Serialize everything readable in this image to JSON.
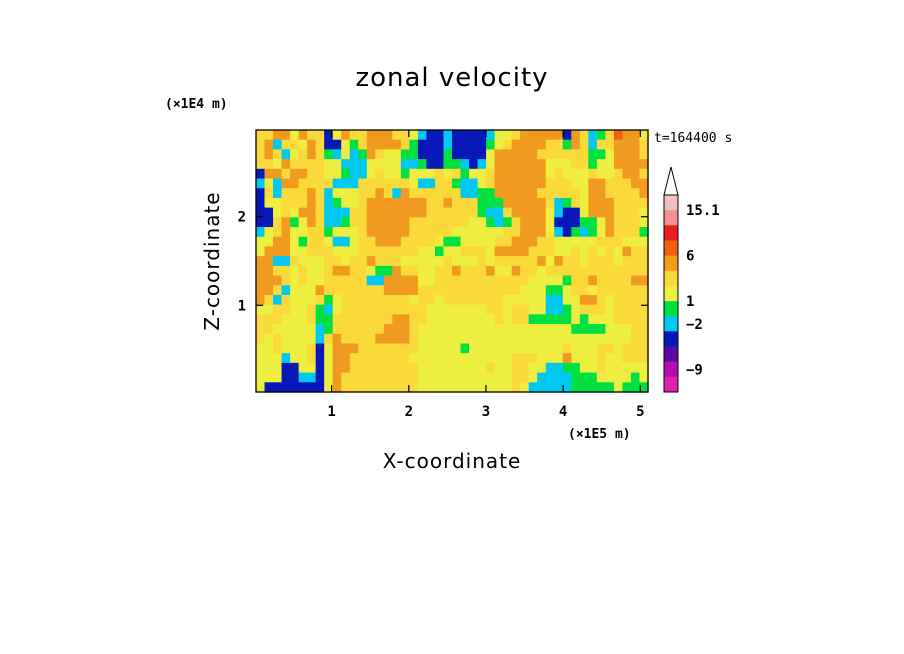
{
  "chart_data": {
    "type": "heatmap",
    "title": "zonal velocity",
    "xlabel": "X-coordinate",
    "ylabel": "Z-coordinate",
    "x_unit": "(×1E5 m)",
    "y_unit": "(×1E4 m)",
    "time_label": "t=164400 s",
    "xlim": [
      0.02,
      5.1
    ],
    "ylim": [
      0.02,
      2.98
    ],
    "x_ticks": [
      {
        "value": 1,
        "label": "1"
      },
      {
        "value": 2,
        "label": "2"
      },
      {
        "value": 3,
        "label": "3"
      },
      {
        "value": 4,
        "label": "4"
      },
      {
        "value": 5,
        "label": "5"
      }
    ],
    "y_ticks": [
      {
        "value": 1,
        "label": "1"
      },
      {
        "value": 2,
        "label": "2"
      }
    ],
    "colorbar": {
      "extend_max": true,
      "levels": [
        {
          "color": "#f2c0c0"
        },
        {
          "color": "#f59090"
        },
        {
          "color": "#e82020"
        },
        {
          "color": "#f06010"
        },
        {
          "color": "#f09a20"
        },
        {
          "color": "#fada3a"
        },
        {
          "color": "#eeee40"
        },
        {
          "color": "#00e040"
        },
        {
          "color": "#00c8f0"
        },
        {
          "color": "#0818b8"
        },
        {
          "color": "#5a0aa0"
        },
        {
          "color": "#b010b0"
        },
        {
          "color": "#e020b0"
        }
      ],
      "labels": [
        {
          "text": "15.1",
          "boundary": 1
        },
        {
          "text": "6",
          "boundary": 4
        },
        {
          "text": "1",
          "boundary": 7
        },
        {
          "text": "−2",
          "boundary": 8.5
        },
        {
          "text": "−9",
          "boundary": 11.5
        }
      ]
    },
    "field": [
      [
        5,
        5,
        4,
        4,
        6,
        4,
        5,
        5,
        9,
        6,
        4,
        5,
        5,
        4,
        4,
        4,
        5,
        5,
        6,
        8,
        9,
        9,
        8,
        9,
        9,
        9,
        9,
        8,
        6,
        6,
        5,
        4,
        4,
        4,
        4,
        4,
        9,
        4,
        5,
        8,
        7,
        5,
        3,
        4,
        4,
        6
      ],
      [
        5,
        4,
        8,
        5,
        5,
        6,
        4,
        5,
        9,
        9,
        6,
        7,
        5,
        4,
        4,
        4,
        4,
        5,
        7,
        9,
        9,
        9,
        8,
        9,
        9,
        9,
        9,
        7,
        6,
        5,
        4,
        4,
        4,
        4,
        5,
        5,
        7,
        4,
        5,
        8,
        5,
        5,
        4,
        4,
        4,
        5
      ],
      [
        5,
        4,
        5,
        8,
        6,
        5,
        4,
        5,
        7,
        8,
        6,
        8,
        7,
        4,
        5,
        6,
        6,
        7,
        7,
        9,
        9,
        9,
        7,
        9,
        9,
        9,
        9,
        6,
        4,
        4,
        4,
        4,
        4,
        5,
        5,
        5,
        5,
        5,
        5,
        7,
        7,
        6,
        4,
        4,
        4,
        5
      ],
      [
        5,
        5,
        6,
        4,
        5,
        5,
        5,
        5,
        6,
        6,
        8,
        8,
        8,
        6,
        6,
        6,
        6,
        8,
        8,
        7,
        9,
        9,
        7,
        7,
        8,
        9,
        8,
        6,
        4,
        4,
        4,
        4,
        4,
        4,
        6,
        6,
        6,
        5,
        5,
        7,
        6,
        6,
        4,
        4,
        4,
        4
      ],
      [
        9,
        4,
        4,
        5,
        4,
        4,
        5,
        5,
        6,
        6,
        7,
        8,
        8,
        6,
        5,
        6,
        6,
        7,
        6,
        6,
        6,
        5,
        6,
        5,
        7,
        6,
        6,
        5,
        4,
        4,
        4,
        4,
        4,
        4,
        6,
        5,
        6,
        6,
        6,
        5,
        6,
        6,
        5,
        4,
        4,
        5
      ],
      [
        8,
        6,
        8,
        4,
        4,
        5,
        5,
        5,
        5,
        8,
        8,
        8,
        5,
        5,
        5,
        5,
        5,
        5,
        6,
        8,
        8,
        5,
        5,
        7,
        8,
        8,
        6,
        5,
        4,
        4,
        4,
        4,
        4,
        4,
        5,
        5,
        5,
        6,
        6,
        4,
        4,
        5,
        5,
        5,
        4,
        4
      ],
      [
        9,
        5,
        8,
        5,
        5,
        5,
        4,
        5,
        8,
        6,
        6,
        6,
        5,
        5,
        4,
        5,
        8,
        4,
        5,
        5,
        5,
        5,
        5,
        5,
        8,
        8,
        7,
        7,
        4,
        4,
        4,
        4,
        4,
        5,
        5,
        5,
        5,
        5,
        6,
        4,
        4,
        5,
        5,
        5,
        5,
        4
      ],
      [
        9,
        6,
        6,
        5,
        5,
        5,
        4,
        5,
        8,
        7,
        6,
        6,
        5,
        4,
        4,
        4,
        4,
        4,
        4,
        4,
        5,
        5,
        4,
        5,
        5,
        5,
        7,
        7,
        7,
        4,
        4,
        4,
        4,
        4,
        5,
        8,
        7,
        5,
        6,
        4,
        4,
        4,
        5,
        5,
        5,
        5
      ],
      [
        9,
        9,
        6,
        5,
        6,
        4,
        4,
        5,
        8,
        8,
        8,
        5,
        5,
        4,
        4,
        4,
        4,
        4,
        4,
        4,
        5,
        5,
        5,
        5,
        5,
        5,
        7,
        8,
        8,
        5,
        4,
        4,
        4,
        4,
        6,
        8,
        9,
        9,
        6,
        4,
        4,
        4,
        5,
        5,
        5,
        6
      ],
      [
        9,
        9,
        5,
        4,
        7,
        6,
        4,
        5,
        8,
        8,
        7,
        5,
        5,
        4,
        4,
        4,
        4,
        4,
        5,
        5,
        5,
        5,
        5,
        5,
        5,
        6,
        6,
        7,
        8,
        7,
        5,
        4,
        4,
        4,
        6,
        9,
        9,
        9,
        7,
        7,
        6,
        4,
        5,
        5,
        5,
        6
      ],
      [
        8,
        6,
        5,
        4,
        6,
        6,
        5,
        5,
        7,
        6,
        6,
        6,
        5,
        4,
        4,
        4,
        4,
        4,
        5,
        5,
        5,
        5,
        5,
        6,
        6,
        6,
        6,
        6,
        6,
        5,
        5,
        4,
        4,
        4,
        6,
        8,
        9,
        7,
        8,
        7,
        6,
        4,
        5,
        5,
        5,
        7
      ],
      [
        6,
        6,
        4,
        4,
        6,
        7,
        5,
        5,
        6,
        8,
        8,
        6,
        5,
        5,
        4,
        4,
        4,
        5,
        5,
        5,
        5,
        6,
        7,
        7,
        6,
        6,
        6,
        6,
        5,
        5,
        4,
        4,
        4,
        5,
        5,
        6,
        6,
        6,
        6,
        6,
        5,
        5,
        5,
        6,
        6,
        6
      ],
      [
        6,
        4,
        4,
        4,
        6,
        6,
        5,
        5,
        5,
        6,
        6,
        6,
        5,
        5,
        5,
        5,
        5,
        5,
        5,
        6,
        6,
        7,
        6,
        6,
        5,
        5,
        5,
        6,
        4,
        4,
        4,
        4,
        5,
        5,
        5,
        6,
        6,
        5,
        6,
        5,
        6,
        5,
        6,
        4,
        5,
        5
      ],
      [
        4,
        4,
        8,
        8,
        5,
        6,
        6,
        6,
        5,
        5,
        6,
        5,
        5,
        4,
        5,
        5,
        5,
        6,
        6,
        6,
        6,
        6,
        5,
        6,
        6,
        6,
        5,
        6,
        5,
        5,
        5,
        5,
        5,
        4,
        6,
        4,
        5,
        5,
        6,
        5,
        5,
        5,
        6,
        5,
        5,
        5
      ],
      [
        4,
        4,
        5,
        5,
        6,
        5,
        6,
        6,
        5,
        4,
        4,
        5,
        5,
        6,
        7,
        7,
        4,
        5,
        5,
        6,
        6,
        5,
        5,
        4,
        5,
        5,
        5,
        4,
        6,
        6,
        4,
        5,
        5,
        6,
        5,
        5,
        5,
        5,
        5,
        5,
        5,
        5,
        5,
        5,
        5,
        5
      ],
      [
        4,
        4,
        4,
        5,
        6,
        5,
        6,
        6,
        5,
        5,
        5,
        5,
        5,
        8,
        8,
        4,
        4,
        4,
        4,
        6,
        6,
        5,
        5,
        5,
        5,
        5,
        5,
        5,
        5,
        5,
        5,
        5,
        6,
        6,
        6,
        6,
        7,
        5,
        5,
        4,
        5,
        5,
        5,
        5,
        4,
        4
      ],
      [
        4,
        4,
        5,
        8,
        6,
        6,
        6,
        4,
        5,
        5,
        5,
        5,
        5,
        5,
        5,
        4,
        4,
        4,
        4,
        5,
        5,
        5,
        5,
        5,
        5,
        5,
        5,
        5,
        5,
        5,
        5,
        6,
        6,
        6,
        7,
        7,
        6,
        5,
        5,
        6,
        5,
        5,
        5,
        5,
        5,
        5
      ],
      [
        4,
        5,
        8,
        5,
        6,
        6,
        6,
        5,
        7,
        6,
        5,
        5,
        5,
        5,
        5,
        5,
        5,
        5,
        6,
        5,
        5,
        6,
        5,
        5,
        5,
        5,
        5,
        5,
        5,
        6,
        6,
        6,
        6,
        6,
        8,
        8,
        6,
        6,
        4,
        4,
        5,
        6,
        5,
        5,
        5,
        5
      ],
      [
        6,
        6,
        5,
        5,
        6,
        6,
        5,
        7,
        8,
        6,
        5,
        5,
        5,
        5,
        5,
        5,
        5,
        5,
        5,
        5,
        6,
        6,
        6,
        6,
        6,
        6,
        6,
        5,
        5,
        6,
        5,
        5,
        6,
        6,
        8,
        8,
        7,
        6,
        5,
        5,
        5,
        6,
        5,
        5,
        5,
        5
      ],
      [
        5,
        5,
        5,
        6,
        6,
        6,
        5,
        7,
        7,
        5,
        5,
        5,
        5,
        5,
        5,
        5,
        4,
        4,
        5,
        5,
        6,
        6,
        6,
        6,
        6,
        6,
        6,
        6,
        5,
        6,
        5,
        5,
        7,
        7,
        7,
        7,
        7,
        6,
        7,
        6,
        6,
        6,
        5,
        5,
        5,
        5
      ],
      [
        5,
        5,
        6,
        6,
        6,
        6,
        6,
        8,
        7,
        5,
        5,
        5,
        5,
        5,
        5,
        4,
        4,
        4,
        5,
        6,
        6,
        6,
        6,
        6,
        6,
        6,
        6,
        6,
        6,
        6,
        6,
        6,
        6,
        6,
        6,
        6,
        6,
        7,
        7,
        7,
        7,
        6,
        6,
        6,
        5,
        5
      ],
      [
        5,
        6,
        5,
        6,
        6,
        6,
        6,
        8,
        5,
        4,
        5,
        5,
        5,
        5,
        4,
        4,
        4,
        4,
        5,
        6,
        6,
        6,
        6,
        6,
        6,
        6,
        6,
        6,
        6,
        6,
        6,
        6,
        6,
        6,
        6,
        6,
        6,
        6,
        6,
        6,
        6,
        6,
        6,
        6,
        5,
        5
      ],
      [
        6,
        6,
        5,
        6,
        6,
        6,
        5,
        9,
        6,
        4,
        4,
        4,
        5,
        5,
        5,
        5,
        5,
        5,
        5,
        6,
        6,
        6,
        6,
        6,
        7,
        6,
        6,
        6,
        6,
        6,
        6,
        6,
        6,
        6,
        6,
        6,
        5,
        6,
        6,
        6,
        5,
        5,
        6,
        5,
        5,
        5
      ],
      [
        6,
        6,
        6,
        8,
        6,
        6,
        5,
        9,
        6,
        4,
        4,
        5,
        5,
        5,
        5,
        5,
        5,
        5,
        6,
        6,
        6,
        6,
        6,
        6,
        6,
        6,
        6,
        6,
        6,
        6,
        5,
        5,
        5,
        6,
        6,
        6,
        4,
        6,
        6,
        6,
        5,
        6,
        6,
        5,
        5,
        5
      ],
      [
        6,
        6,
        6,
        9,
        9,
        6,
        6,
        9,
        6,
        4,
        4,
        5,
        5,
        5,
        5,
        5,
        5,
        5,
        5,
        6,
        6,
        6,
        6,
        6,
        6,
        6,
        6,
        5,
        6,
        6,
        5,
        5,
        6,
        6,
        8,
        8,
        7,
        7,
        6,
        6,
        5,
        6,
        6,
        6,
        6,
        6
      ],
      [
        6,
        6,
        6,
        9,
        9,
        8,
        8,
        9,
        6,
        4,
        5,
        5,
        5,
        5,
        5,
        5,
        5,
        5,
        5,
        6,
        6,
        6,
        6,
        6,
        6,
        6,
        6,
        6,
        6,
        6,
        5,
        5,
        6,
        8,
        8,
        8,
        8,
        7,
        7,
        7,
        6,
        6,
        6,
        6,
        7,
        6
      ],
      [
        6,
        9,
        9,
        9,
        9,
        9,
        9,
        9,
        6,
        4,
        5,
        5,
        5,
        5,
        5,
        5,
        5,
        5,
        5,
        6,
        6,
        6,
        6,
        6,
        6,
        6,
        6,
        6,
        6,
        6,
        5,
        6,
        8,
        8,
        8,
        8,
        8,
        7,
        7,
        7,
        7,
        7,
        6,
        7,
        7,
        7
      ]
    ]
  }
}
